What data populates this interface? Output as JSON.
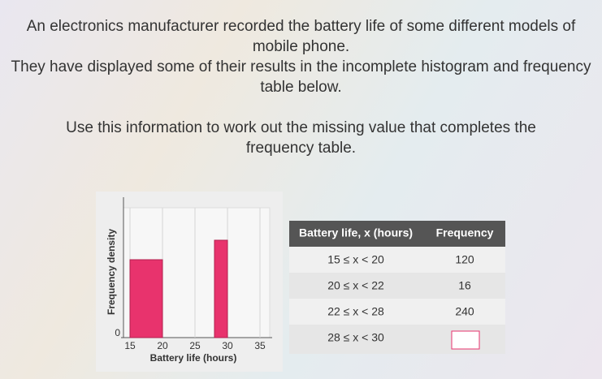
{
  "question": {
    "paragraphs": [
      "An electronics manufacturer recorded the battery life of some different models of mobile phone.",
      "They have displayed some of their results in the incomplete histogram and frequency table below.",
      "Use this information to work out the missing value that completes the frequency table."
    ]
  },
  "chart_data": {
    "type": "histogram",
    "x_label": "Battery life (hours)",
    "y_label": "Frequency density",
    "bins": [
      15,
      20,
      22,
      28,
      30
    ],
    "values": [
      24,
      null,
      null,
      30
    ],
    "color": "#e8336d",
    "xlim": [
      14,
      37
    ],
    "xticks": [
      15,
      20,
      25,
      30,
      35
    ],
    "ylim": [
      0,
      40
    ],
    "yticks": [
      0
    ],
    "grid": true
  },
  "table": {
    "header": [
      "Battery life, x (hours)",
      "Frequency"
    ],
    "rows": [
      [
        "15 ≤ x < 20",
        "120"
      ],
      [
        "20 ≤ x < 22",
        "16"
      ],
      [
        "22 ≤ x < 28",
        "240"
      ],
      [
        "28 ≤ x < 30",
        null
      ]
    ]
  }
}
